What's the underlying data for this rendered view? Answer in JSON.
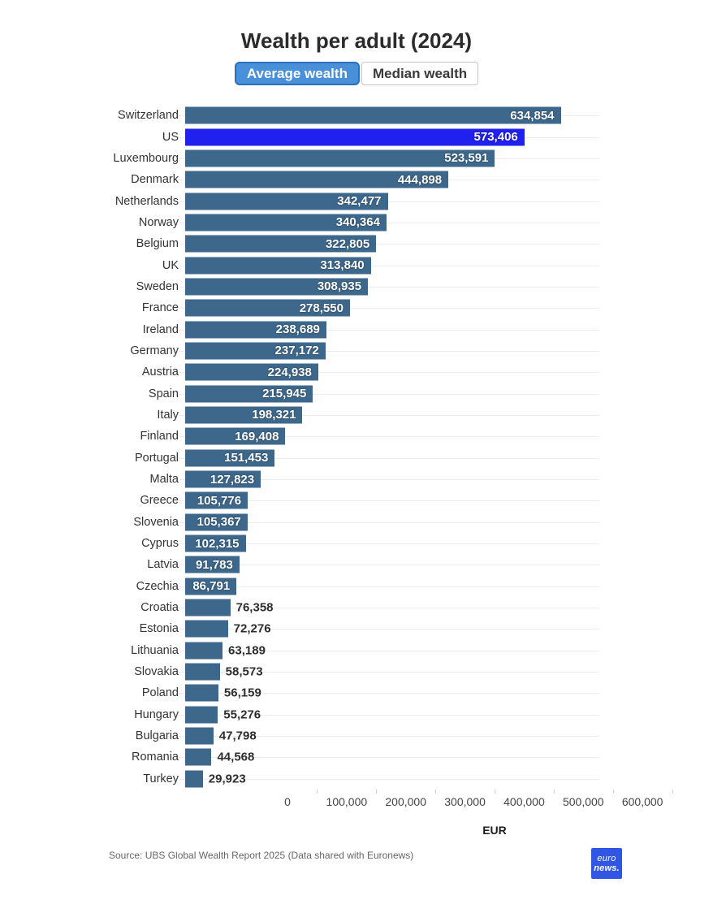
{
  "title": "Wealth per adult (2024)",
  "tabs": [
    {
      "label": "Average wealth",
      "active": true
    },
    {
      "label": "Median wealth",
      "active": false
    }
  ],
  "chart_data": {
    "type": "bar",
    "orientation": "horizontal",
    "title": "Wealth per adult (2024)",
    "xlabel": "EUR",
    "ylabel": "",
    "xlim": [
      0,
      700000
    ],
    "grid": "horizontal-row-lines",
    "bar_color": "#3d688c",
    "highlight_color": "#2121ef",
    "highlight_index": 1,
    "inside_label_threshold": 80000,
    "categories": [
      "Switzerland",
      "US",
      "Luxembourg",
      "Denmark",
      "Netherlands",
      "Norway",
      "Belgium",
      "UK",
      "Sweden",
      "France",
      "Ireland",
      "Germany",
      "Austria",
      "Spain",
      "Italy",
      "Finland",
      "Portugal",
      "Malta",
      "Greece",
      "Slovenia",
      "Cyprus",
      "Latvia",
      "Czechia",
      "Croatia",
      "Estonia",
      "Lithuania",
      "Slovakia",
      "Poland",
      "Hungary",
      "Bulgaria",
      "Romania",
      "Turkey"
    ],
    "values": [
      634854,
      573406,
      523591,
      444898,
      342477,
      340364,
      322805,
      313840,
      308935,
      278550,
      238689,
      237172,
      224938,
      215945,
      198321,
      169408,
      151453,
      127823,
      105776,
      105367,
      102315,
      91783,
      86791,
      76358,
      72276,
      63189,
      58573,
      56159,
      55276,
      47798,
      44568,
      29923
    ],
    "x_ticks": [
      {
        "value": 0,
        "label": "0"
      },
      {
        "value": 100000,
        "label": "100,000"
      },
      {
        "value": 200000,
        "label": "200,000"
      },
      {
        "value": 300000,
        "label": "300,000"
      },
      {
        "value": 400000,
        "label": "400,000"
      },
      {
        "value": 500000,
        "label": "500,000"
      },
      {
        "value": 600000,
        "label": "600,000"
      }
    ],
    "minor_ticks": [
      50000,
      150000,
      250000,
      350000,
      450000,
      550000,
      650000
    ],
    "unit_label": "EUR"
  },
  "footer": {
    "source": "Source: UBS Global Wealth Report 2025 (Data shared with Euronews)",
    "logo_line1": "euro",
    "logo_line2": "news.",
    "logo_color": "#3156e4"
  }
}
